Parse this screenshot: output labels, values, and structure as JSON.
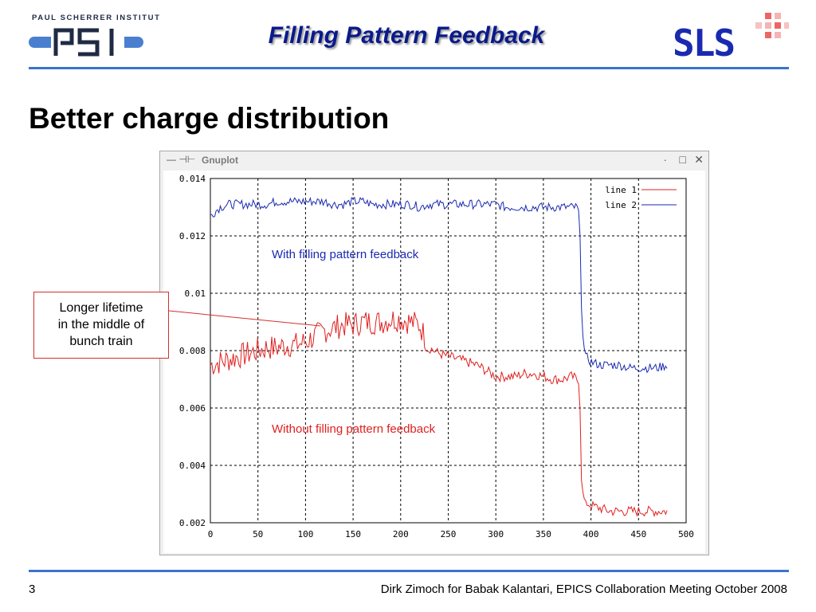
{
  "header": {
    "institute": "PAUL SCHERRER INSTITUT",
    "psi_logo": "PSI",
    "title": "Filling Pattern Feedback",
    "sls_logo": "SLS",
    "brand_color": "#0a1a8a",
    "rule_color": "#3c74c8"
  },
  "slide": {
    "heading": "Better charge distribution"
  },
  "gnuplot_window": {
    "title": "Gnuplot",
    "controls": {
      "dot": "·",
      "maximize": "□",
      "close": "✕"
    },
    "left_icons": "— ⊣⊢"
  },
  "callout": {
    "line1": "Longer lifetime",
    "line2": "in the middle of",
    "line3": "bunch train"
  },
  "chart_data": {
    "type": "line",
    "title": "",
    "xlabel": "",
    "ylabel": "",
    "xlim": [
      0,
      500
    ],
    "ylim": [
      0.002,
      0.014
    ],
    "xticks": [
      "0",
      "50",
      "100",
      "150",
      "200",
      "250",
      "300",
      "350",
      "400",
      "450",
      "500"
    ],
    "yticks": [
      "0.002",
      "0.004",
      "0.006",
      "0.008",
      "0.01",
      "0.012",
      "0.014"
    ],
    "grid": true,
    "legend": "top-right",
    "series": [
      {
        "name": "line 1",
        "color": "#e02020",
        "annotation": "Without filling pattern feedback",
        "x": [
          0,
          10,
          20,
          30,
          40,
          50,
          60,
          70,
          80,
          90,
          100,
          110,
          120,
          130,
          140,
          150,
          160,
          170,
          180,
          190,
          200,
          210,
          220,
          230,
          240,
          250,
          260,
          270,
          280,
          290,
          300,
          310,
          320,
          330,
          340,
          350,
          360,
          370,
          380,
          385,
          388,
          390,
          392,
          395,
          400,
          410,
          420,
          430,
          440,
          450,
          460,
          470,
          480
        ],
        "y": [
          0.0075,
          0.0076,
          0.0077,
          0.0078,
          0.0079,
          0.008,
          0.0081,
          0.0081,
          0.0082,
          0.0082,
          0.0083,
          0.0085,
          0.0087,
          0.0088,
          0.0089,
          0.0089,
          0.009,
          0.009,
          0.009,
          0.0091,
          0.0091,
          0.009,
          0.0089,
          0.0081,
          0.0079,
          0.0078,
          0.0077,
          0.0076,
          0.0075,
          0.0073,
          0.0071,
          0.0071,
          0.0071,
          0.0072,
          0.0072,
          0.0071,
          0.007,
          0.007,
          0.0071,
          0.007,
          0.0068,
          0.0035,
          0.0029,
          0.0027,
          0.0026,
          0.0025,
          0.0024,
          0.0024,
          0.0024,
          0.0024,
          0.0024,
          0.0024,
          0.0024
        ]
      },
      {
        "name": "line 2",
        "color": "#1a2ab0",
        "annotation": "With filling pattern feedback",
        "x": [
          0,
          10,
          20,
          30,
          40,
          50,
          60,
          70,
          80,
          90,
          100,
          110,
          120,
          130,
          140,
          150,
          160,
          170,
          180,
          190,
          200,
          210,
          220,
          230,
          240,
          250,
          260,
          270,
          280,
          290,
          300,
          310,
          320,
          330,
          340,
          350,
          360,
          370,
          380,
          385,
          388,
          390,
          392,
          395,
          400,
          410,
          420,
          430,
          440,
          450,
          460,
          470,
          480
        ],
        "y": [
          0.0127,
          0.013,
          0.0131,
          0.0131,
          0.0131,
          0.0131,
          0.0131,
          0.0132,
          0.0132,
          0.0132,
          0.0132,
          0.0132,
          0.0132,
          0.0131,
          0.0131,
          0.0132,
          0.0132,
          0.0131,
          0.0131,
          0.0131,
          0.0131,
          0.0131,
          0.013,
          0.0131,
          0.0131,
          0.0131,
          0.0131,
          0.0131,
          0.0131,
          0.0131,
          0.0131,
          0.013,
          0.013,
          0.013,
          0.013,
          0.013,
          0.013,
          0.013,
          0.013,
          0.013,
          0.0128,
          0.0095,
          0.0082,
          0.0078,
          0.0076,
          0.0075,
          0.0075,
          0.0075,
          0.0074,
          0.0074,
          0.0074,
          0.0074,
          0.0075
        ]
      }
    ],
    "text_labels": [
      {
        "text": "With filling pattern feedback",
        "color": "#1a2ab0"
      },
      {
        "text": "Without filling pattern feedback",
        "color": "#e02020"
      }
    ]
  },
  "footer": {
    "page": "3",
    "text": "Dirk Zimoch for Babak Kalantari, EPICS Collaboration Meeting October 2008"
  }
}
